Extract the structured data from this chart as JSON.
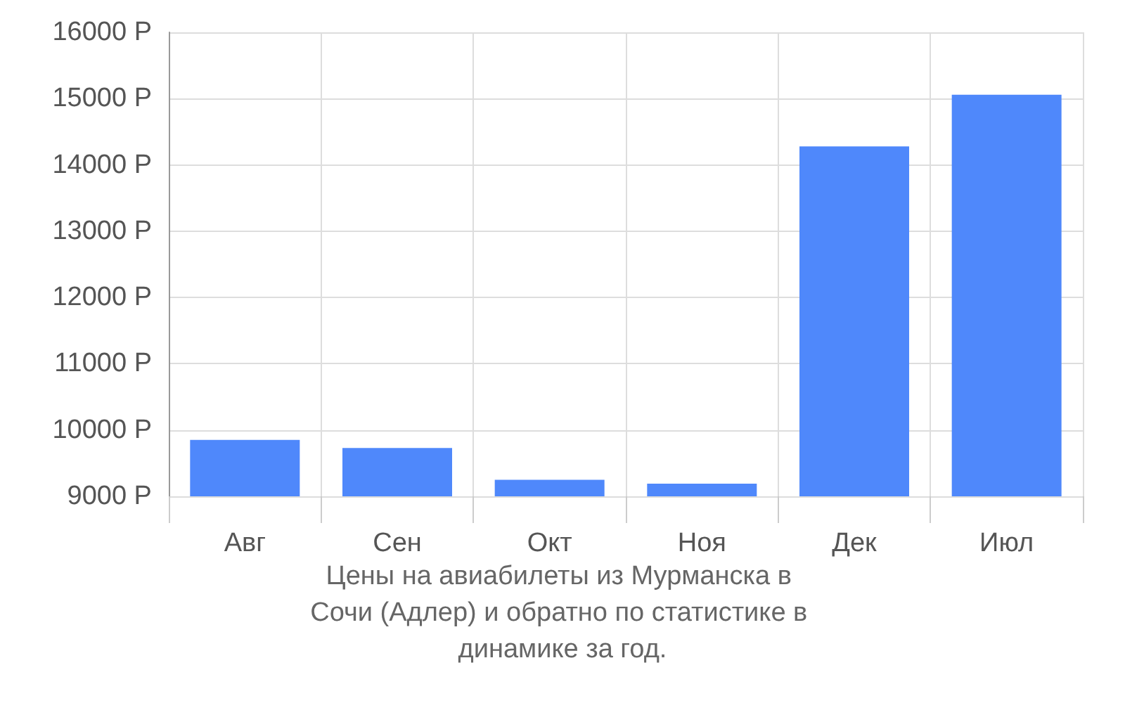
{
  "chart_data": {
    "type": "bar",
    "categories": [
      "Авг",
      "Сен",
      "Окт",
      "Ноя",
      "Дек",
      "Июл"
    ],
    "values": [
      9850,
      9730,
      9250,
      9190,
      14280,
      15060
    ],
    "color": "#4f88fb",
    "ylim": [
      9000,
      16000
    ],
    "yticks": [
      {
        "value": 9000,
        "label": "9000 Р"
      },
      {
        "value": 10000,
        "label": "10000 Р"
      },
      {
        "value": 11000,
        "label": "11000 Р"
      },
      {
        "value": 12000,
        "label": "12000 Р"
      },
      {
        "value": 13000,
        "label": "13000 Р"
      },
      {
        "value": 14000,
        "label": "14000 Р"
      },
      {
        "value": 15000,
        "label": "15000 Р"
      },
      {
        "value": 16000,
        "label": "16000 Р"
      }
    ],
    "grid": true,
    "annotations": [
      "Цены на авиабилеты из Мурманска в Сочи (Адлер) и обратно по статистике в динамике за год."
    ]
  }
}
